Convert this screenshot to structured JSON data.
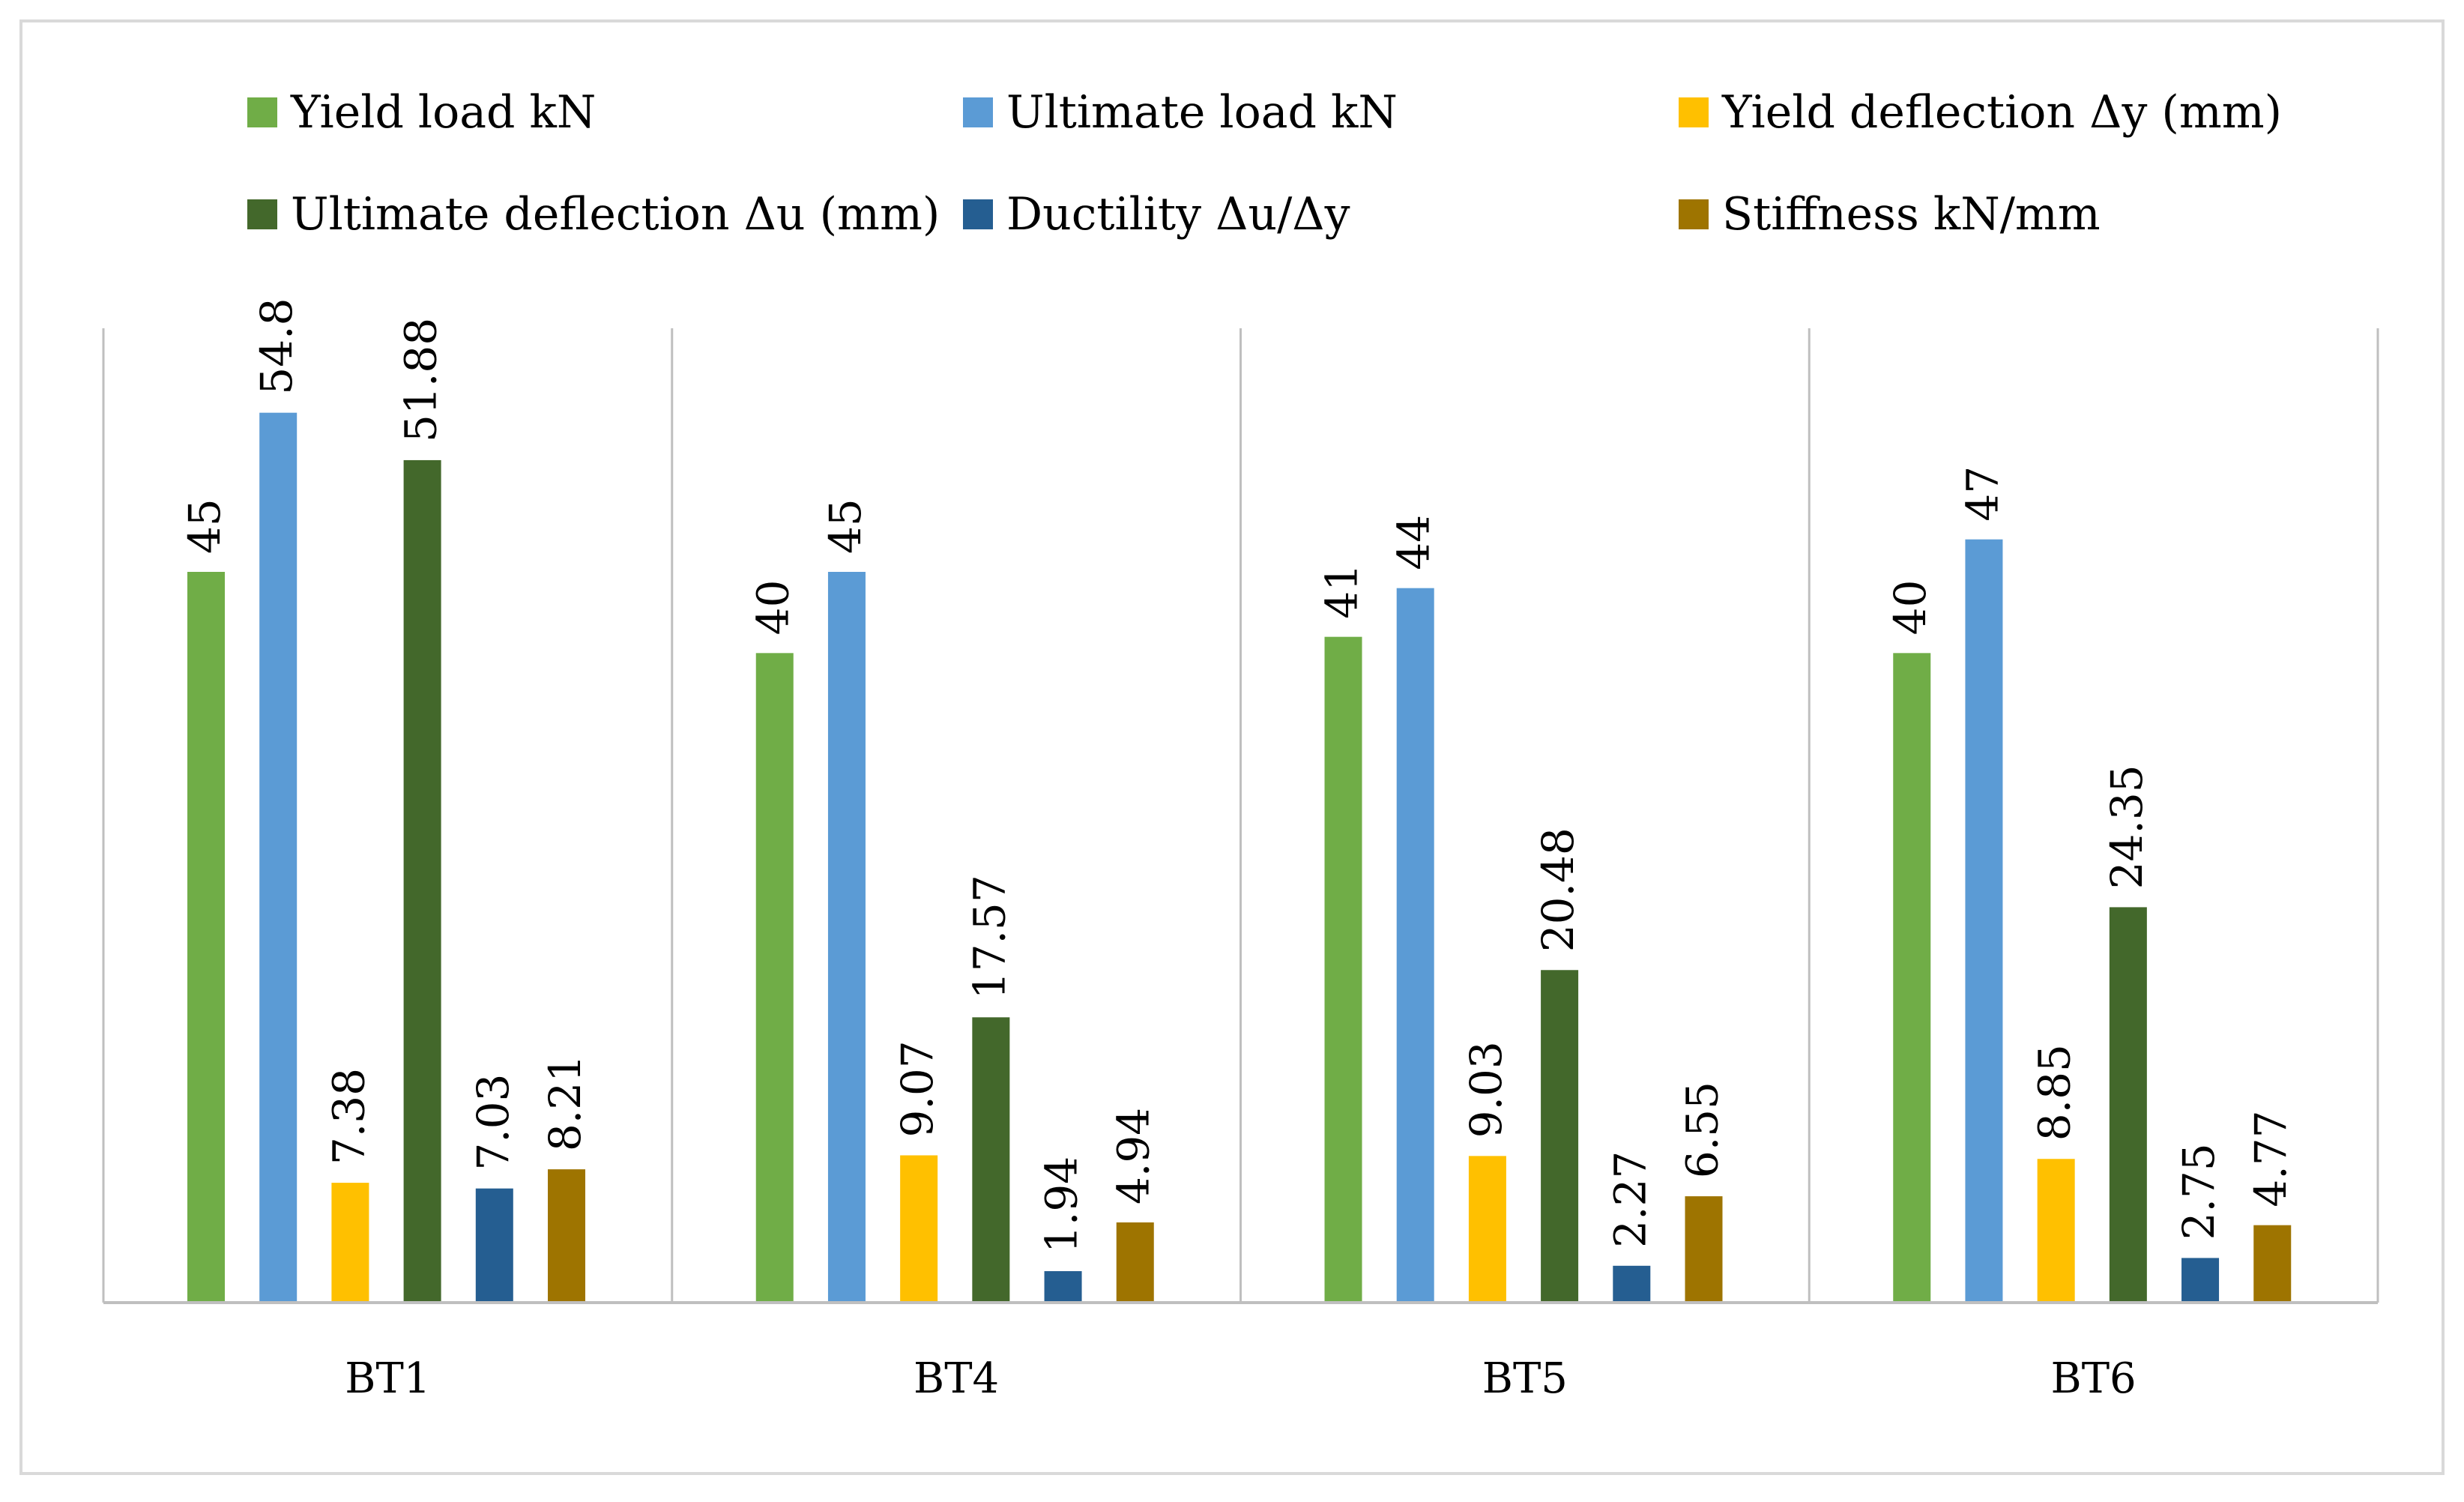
{
  "chart_data": {
    "type": "bar",
    "categories": [
      "BT1",
      "BT4",
      "BT5",
      "BT6"
    ],
    "series": [
      {
        "name": "Yield load kN",
        "color": "#70AD47",
        "values": [
          45,
          40,
          41,
          40
        ]
      },
      {
        "name": "Ultimate load kN",
        "color": "#5B9BD5",
        "values": [
          54.8,
          45,
          44,
          47
        ]
      },
      {
        "name": "Yield deflection Δy (mm)",
        "color": "#FFC000",
        "values": [
          7.38,
          9.07,
          9.03,
          8.85
        ]
      },
      {
        "name": "Ultimate deflection Δu (mm)",
        "color": "#43682B",
        "values": [
          51.88,
          17.57,
          20.48,
          24.35
        ]
      },
      {
        "name": "Ductility Δu/Δy",
        "color": "#255E91",
        "values": [
          7.03,
          1.94,
          2.27,
          2.75
        ]
      },
      {
        "name": "Stiffness kN/mm",
        "color": "#9E7400",
        "values": [
          8.21,
          4.94,
          6.55,
          4.77
        ]
      }
    ],
    "value_labels": [
      [
        "45",
        "40",
        "41",
        "40"
      ],
      [
        "54.8",
        "45",
        "44",
        "47"
      ],
      [
        "7.38",
        "9.07",
        "9.03",
        "8.85"
      ],
      [
        "51.88",
        "17.57",
        "20.48",
        "24.35"
      ],
      [
        "7.03",
        "1.94",
        "2.27",
        "2.75"
      ],
      [
        "8.21",
        "4.94",
        "6.55",
        "4.77"
      ]
    ],
    "title": "",
    "xlabel": "",
    "ylabel": "",
    "ylim": [
      0,
      60
    ],
    "legend_position": "top",
    "grid": false,
    "category_separators": true
  },
  "colors": {
    "frame": "#D9D9D9",
    "axis": "#BFBFBF",
    "text": "#000000",
    "background": "#FFFFFF"
  }
}
